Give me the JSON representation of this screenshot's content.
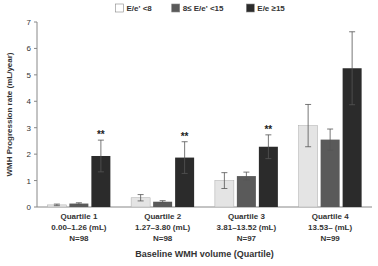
{
  "chart_data": {
    "type": "bar",
    "x_label": "Baseline WMH volume (Quartile)",
    "y_label": "WMH Progression rate (mL/year)",
    "categories": [
      "Quartile 1\n0.00–1.26 (mL)\nN=98",
      "Quartile 2\n1.27–3.80 (mL)\nN=98",
      "Quartile 3\n3.81–13.52 (mL)\nN=97",
      "Quartile 4\n13.53– (mL)\nN=99"
    ],
    "series": [
      {
        "name": "E/e' <8",
        "color": "#e4e4e4",
        "values": [
          0.08,
          0.35,
          1.0,
          3.08
        ],
        "errors": [
          0.03,
          0.12,
          0.3,
          0.8
        ]
      },
      {
        "name": "8≤ E/e' <15",
        "color": "#5a5a5a",
        "values": [
          0.13,
          0.2,
          1.17,
          2.55
        ],
        "errors": [
          0.03,
          0.04,
          0.15,
          0.4
        ]
      },
      {
        "name": "E/e ≥15",
        "color": "#2b2b2b",
        "values": [
          1.93,
          1.87,
          2.28,
          5.25
        ],
        "errors": [
          0.6,
          0.6,
          0.45,
          1.38
        ]
      }
    ],
    "annotations": [
      {
        "text": "**",
        "category": 0,
        "series": 2
      },
      {
        "text": "**",
        "category": 1,
        "series": 2
      },
      {
        "text": "**",
        "category": 2,
        "series": 2
      }
    ],
    "ylim": [
      0,
      7
    ],
    "yticks": [
      0,
      1,
      2,
      3,
      4,
      5,
      6,
      7
    ],
    "grid": false,
    "legend": "top"
  }
}
